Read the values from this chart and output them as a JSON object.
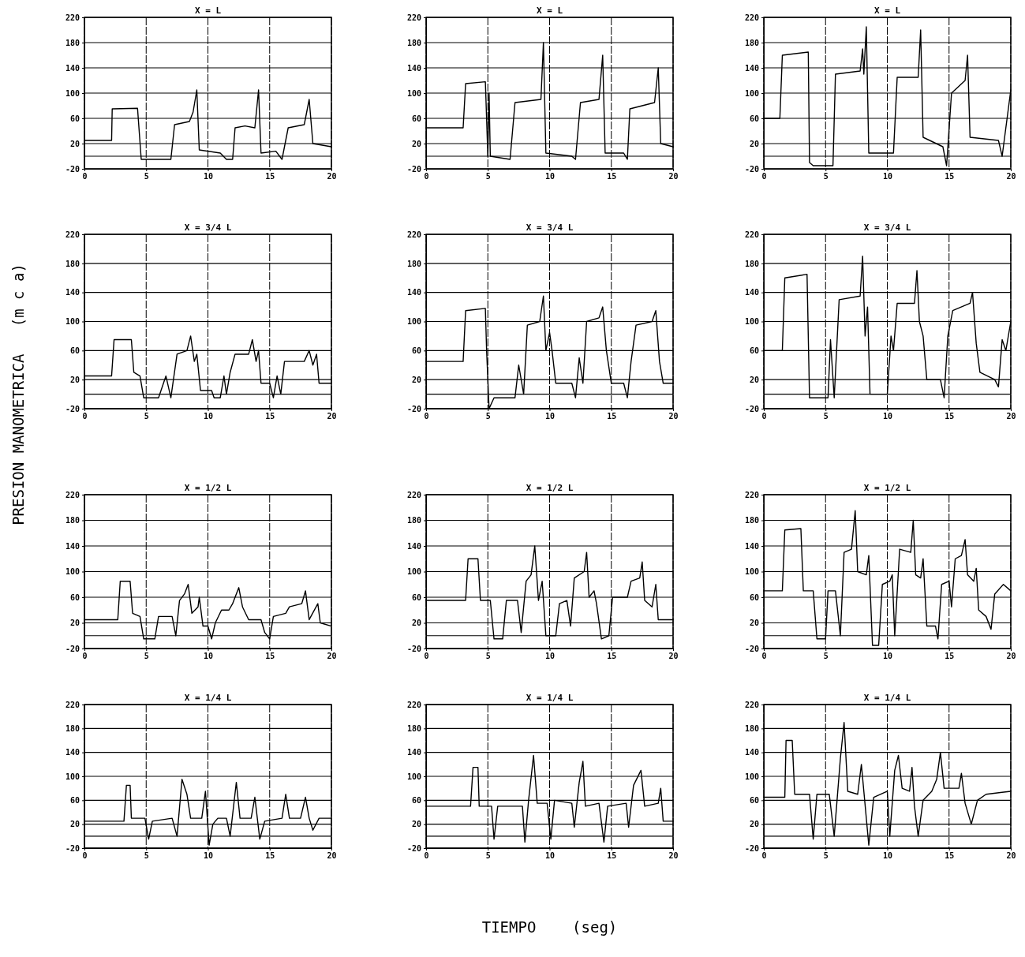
{
  "chart_data": [
    {
      "type": "line",
      "title": "X = L",
      "xlim": [
        0,
        20
      ],
      "xticks": [
        0,
        5,
        10,
        15,
        20
      ],
      "ylim": [
        -20,
        220
      ],
      "yticks": [
        -20,
        20,
        60,
        100,
        140,
        180,
        220
      ],
      "grid": true,
      "ref_lines": [
        {
          "axis": "y",
          "value": 0
        }
      ],
      "series": [
        {
          "color": "#000000",
          "x": [
            0,
            2.2,
            2.25,
            4.3,
            4.6,
            7,
            7.3,
            8.5,
            8.8,
            9.1,
            9.3,
            11,
            11.5,
            12,
            12.2,
            13,
            13.8,
            14.1,
            14.3,
            15.5,
            16,
            16.5,
            17.8,
            18.2,
            18.5,
            20
          ],
          "values": [
            25,
            25,
            75,
            76,
            -5,
            -5,
            50,
            55,
            70,
            105,
            10,
            5,
            -5,
            -5,
            45,
            48,
            45,
            105,
            5,
            8,
            -5,
            45,
            50,
            90,
            20,
            15
          ]
        }
      ]
    },
    {
      "type": "line",
      "title": "X = L",
      "xlim": [
        0,
        20
      ],
      "xticks": [
        0,
        5,
        10,
        15,
        20
      ],
      "ylim": [
        -20,
        220
      ],
      "yticks": [
        -20,
        20,
        60,
        100,
        140,
        180,
        220
      ],
      "grid": true,
      "ref_lines": [
        {
          "axis": "y",
          "value": 0
        }
      ],
      "series": [
        {
          "color": "#000000",
          "x": [
            0,
            3,
            3.2,
            4.8,
            5,
            5.1,
            5.2,
            6.8,
            7.2,
            9.3,
            9.5,
            9.7,
            11.8,
            12.1,
            12.5,
            14,
            14.3,
            14.5,
            16,
            16.3,
            16.5,
            18.5,
            18.8,
            19,
            20
          ],
          "values": [
            45,
            45,
            115,
            118,
            0,
            100,
            0,
            -5,
            85,
            90,
            180,
            5,
            0,
            -5,
            85,
            90,
            160,
            5,
            5,
            -5,
            75,
            85,
            140,
            20,
            15
          ]
        }
      ]
    },
    {
      "type": "line",
      "title": "X = L",
      "xlim": [
        0,
        20
      ],
      "xticks": [
        0,
        5,
        10,
        15,
        20
      ],
      "ylim": [
        -20,
        220
      ],
      "yticks": [
        -20,
        20,
        60,
        100,
        140,
        180,
        220
      ],
      "grid": true,
      "ref_lines": [
        {
          "axis": "y",
          "value": 0
        }
      ],
      "series": [
        {
          "color": "#000000",
          "x": [
            0,
            1.3,
            1.5,
            3.6,
            3.7,
            4,
            4.5,
            5.6,
            5.8,
            7.8,
            8,
            8.1,
            8.3,
            8.5,
            10.5,
            10.8,
            12.5,
            12.7,
            12.9,
            14.5,
            14.8,
            15.2,
            16.3,
            16.5,
            16.7,
            19,
            19.3,
            20
          ],
          "values": [
            60,
            60,
            160,
            165,
            -10,
            -15,
            -15,
            -15,
            130,
            135,
            170,
            130,
            205,
            5,
            5,
            125,
            125,
            200,
            30,
            15,
            -15,
            100,
            120,
            160,
            30,
            25,
            0,
            105
          ]
        }
      ]
    },
    {
      "type": "line",
      "title": "X = 3/4 L",
      "ylabel": "PRESION MANOMETRICA   (m c a)",
      "xlim": [
        0,
        20
      ],
      "xticks": [
        0,
        5,
        10,
        15,
        20
      ],
      "ylim": [
        -20,
        220
      ],
      "yticks": [
        -20,
        20,
        60,
        100,
        140,
        180,
        220
      ],
      "grid": true,
      "ref_lines": [
        {
          "axis": "y",
          "value": 0
        }
      ],
      "series": [
        {
          "color": "#000000",
          "x": [
            0,
            2.2,
            2.4,
            3.8,
            4,
            4.5,
            4.8,
            6,
            6.6,
            7,
            7.5,
            8.3,
            8.6,
            8.9,
            9.1,
            9.4,
            10.3,
            10.5,
            11,
            11.3,
            11.5,
            11.8,
            12.2,
            13.3,
            13.6,
            13.9,
            14.1,
            14.3,
            15,
            15.3,
            15.6,
            15.9,
            16.2,
            17.8,
            18.2,
            18.5,
            18.8,
            19,
            20
          ],
          "values": [
            25,
            25,
            75,
            75,
            30,
            25,
            -5,
            -5,
            25,
            -5,
            55,
            60,
            80,
            45,
            55,
            5,
            5,
            -5,
            -5,
            25,
            0,
            30,
            55,
            55,
            75,
            45,
            60,
            15,
            15,
            -5,
            25,
            0,
            45,
            45,
            60,
            40,
            55,
            15,
            15
          ]
        }
      ]
    },
    {
      "type": "line",
      "title": "X = 3/4 L",
      "xlim": [
        0,
        20
      ],
      "xticks": [
        0,
        5,
        10,
        15,
        20
      ],
      "ylim": [
        -20,
        220
      ],
      "yticks": [
        -20,
        20,
        60,
        100,
        140,
        180,
        220
      ],
      "grid": true,
      "ref_lines": [
        {
          "axis": "y",
          "value": 0
        }
      ],
      "series": [
        {
          "color": "#000000",
          "x": [
            0,
            3,
            3.2,
            4.8,
            4.9,
            5.1,
            5.5,
            7.2,
            7.5,
            7.9,
            8.2,
            9.2,
            9.5,
            9.7,
            10,
            10.2,
            10.5,
            11.8,
            12.1,
            12.4,
            12.7,
            13,
            14,
            14.3,
            14.6,
            15,
            16,
            16.3,
            16.6,
            17,
            18.3,
            18.6,
            18.9,
            19.2,
            20
          ],
          "values": [
            45,
            45,
            115,
            118,
            60,
            -20,
            -5,
            -5,
            40,
            0,
            95,
            100,
            135,
            60,
            85,
            60,
            15,
            15,
            -5,
            50,
            15,
            100,
            105,
            120,
            60,
            15,
            15,
            -5,
            45,
            95,
            100,
            115,
            45,
            15,
            15
          ]
        }
      ]
    },
    {
      "type": "line",
      "title": "X = 3/4 L",
      "xlim": [
        0,
        20
      ],
      "xticks": [
        0,
        5,
        10,
        15,
        20
      ],
      "ylim": [
        -20,
        220
      ],
      "yticks": [
        -20,
        20,
        60,
        100,
        140,
        180,
        220
      ],
      "grid": true,
      "ref_lines": [
        {
          "axis": "y",
          "value": 0
        }
      ],
      "series": [
        {
          "color": "#000000",
          "x": [
            0,
            1.5,
            1.7,
            3.5,
            3.7,
            5.2,
            5.4,
            5.7,
            6.1,
            7.8,
            8,
            8.2,
            8.4,
            8.6,
            10,
            10.3,
            10.5,
            10.8,
            12.2,
            12.4,
            12.6,
            12.9,
            13.2,
            14.3,
            14.6,
            14.9,
            15.3,
            16.7,
            16.9,
            17.2,
            17.5,
            18.7,
            19,
            19.3,
            19.6,
            20
          ],
          "values": [
            60,
            60,
            160,
            165,
            -5,
            -5,
            75,
            -5,
            130,
            135,
            190,
            80,
            120,
            0,
            0,
            80,
            60,
            125,
            125,
            170,
            100,
            80,
            20,
            20,
            -5,
            80,
            115,
            125,
            140,
            70,
            30,
            20,
            10,
            75,
            60,
            100
          ]
        }
      ]
    },
    {
      "type": "line",
      "title": "X = 1/2 L",
      "xlim": [
        0,
        20
      ],
      "xticks": [
        0,
        5,
        10,
        15,
        20
      ],
      "ylim": [
        -20,
        220
      ],
      "yticks": [
        -20,
        20,
        60,
        100,
        140,
        180,
        220
      ],
      "grid": true,
      "ref_lines": [
        {
          "axis": "y",
          "value": 0
        }
      ],
      "series": [
        {
          "color": "#000000",
          "x": [
            0,
            2.7,
            2.9,
            3.7,
            3.9,
            4.5,
            4.8,
            5.7,
            6,
            7.1,
            7.4,
            7.7,
            8.1,
            8.4,
            8.7,
            9.2,
            9.3,
            9.6,
            10,
            10.3,
            10.6,
            11.1,
            11.7,
            12,
            12.5,
            12.8,
            13.3,
            14.3,
            14.6,
            15,
            15.3,
            16.3,
            16.6,
            17.6,
            17.9,
            18.2,
            18.9,
            19.1,
            20
          ],
          "values": [
            25,
            25,
            85,
            85,
            35,
            30,
            -5,
            -5,
            30,
            30,
            0,
            55,
            65,
            80,
            35,
            45,
            60,
            15,
            15,
            -5,
            20,
            40,
            40,
            50,
            75,
            45,
            25,
            25,
            5,
            -5,
            30,
            35,
            45,
            50,
            70,
            25,
            50,
            20,
            15
          ]
        }
      ]
    },
    {
      "type": "line",
      "title": "X = 1/2 L",
      "xlim": [
        0,
        20
      ],
      "xticks": [
        0,
        5,
        10,
        15,
        20
      ],
      "ylim": [
        -20,
        220
      ],
      "yticks": [
        -20,
        20,
        60,
        100,
        140,
        180,
        220
      ],
      "grid": true,
      "ref_lines": [
        {
          "axis": "y",
          "value": 0
        }
      ],
      "series": [
        {
          "color": "#000000",
          "x": [
            0,
            3.2,
            3.4,
            4.2,
            4.4,
            5.2,
            5.5,
            6.2,
            6.5,
            7.4,
            7.7,
            8.1,
            8.5,
            8.8,
            9.1,
            9.4,
            9.7,
            10.5,
            10.8,
            11.4,
            11.7,
            12,
            12.8,
            13,
            13.2,
            13.6,
            13.8,
            14.2,
            14.8,
            15.1,
            16.3,
            16.6,
            17.3,
            17.5,
            17.7,
            18.3,
            18.6,
            18.8,
            20
          ],
          "values": [
            55,
            55,
            120,
            120,
            55,
            55,
            -5,
            -5,
            55,
            55,
            5,
            85,
            95,
            140,
            55,
            85,
            0,
            0,
            50,
            55,
            15,
            90,
            100,
            130,
            60,
            70,
            50,
            -5,
            0,
            60,
            60,
            85,
            90,
            115,
            55,
            45,
            80,
            25,
            25
          ]
        }
      ]
    },
    {
      "type": "line",
      "title": "X = 1/2 L",
      "xlim": [
        0,
        20
      ],
      "xticks": [
        0,
        5,
        10,
        15,
        20
      ],
      "ylim": [
        -20,
        220
      ],
      "yticks": [
        -20,
        20,
        60,
        100,
        140,
        180,
        220
      ],
      "grid": true,
      "ref_lines": [
        {
          "axis": "y",
          "value": 0
        }
      ],
      "series": [
        {
          "color": "#000000",
          "x": [
            0,
            1.5,
            1.7,
            3,
            3.2,
            4,
            4.3,
            5,
            5.2,
            5.8,
            6.2,
            6.5,
            7.1,
            7.4,
            7.6,
            8.3,
            8.5,
            8.8,
            9.3,
            9.6,
            10.2,
            10.4,
            10.6,
            11,
            11.9,
            12.1,
            12.3,
            12.7,
            12.9,
            13.2,
            13.9,
            14.1,
            14.4,
            15,
            15.2,
            15.5,
            16,
            16.3,
            16.5,
            17,
            17.2,
            17.4,
            18,
            18.4,
            18.7,
            19.4,
            20
          ],
          "values": [
            70,
            70,
            165,
            167,
            70,
            70,
            -5,
            -5,
            70,
            70,
            0,
            130,
            135,
            195,
            100,
            95,
            125,
            -15,
            -15,
            80,
            85,
            95,
            0,
            135,
            130,
            180,
            95,
            90,
            120,
            15,
            15,
            -5,
            80,
            85,
            45,
            120,
            125,
            150,
            95,
            85,
            105,
            40,
            30,
            10,
            65,
            80,
            70
          ]
        }
      ]
    },
    {
      "type": "line",
      "title": "X = 1/4 L",
      "xlim": [
        0,
        20
      ],
      "xticks": [
        0,
        5,
        10,
        15,
        20
      ],
      "ylim": [
        -20,
        220
      ],
      "yticks": [
        -20,
        20,
        60,
        100,
        140,
        180,
        220
      ],
      "grid": true,
      "ref_lines": [
        {
          "axis": "y",
          "value": 0
        }
      ],
      "series": [
        {
          "color": "#000000",
          "x": [
            0,
            3.2,
            3.4,
            3.7,
            3.8,
            4.9,
            5.2,
            5.5,
            7.1,
            7.5,
            7.9,
            8.3,
            8.6,
            9.5,
            9.8,
            10.1,
            10.4,
            10.8,
            11.5,
            11.8,
            12.3,
            12.6,
            13.5,
            13.8,
            14.2,
            14.6,
            16,
            16.3,
            16.6,
            17.5,
            17.9,
            18.2,
            18.5,
            19,
            20
          ],
          "values": [
            25,
            25,
            85,
            85,
            30,
            30,
            -5,
            25,
            30,
            0,
            95,
            70,
            30,
            30,
            75,
            -15,
            20,
            30,
            30,
            0,
            90,
            30,
            30,
            65,
            -5,
            25,
            30,
            70,
            30,
            30,
            65,
            30,
            10,
            30,
            30
          ]
        }
      ]
    },
    {
      "type": "line",
      "title": "X = 1/4 L",
      "xlabel": "TIEMPO    (seg)",
      "xlim": [
        0,
        20
      ],
      "xticks": [
        0,
        5,
        10,
        15,
        20
      ],
      "ylim": [
        -20,
        220
      ],
      "yticks": [
        -20,
        20,
        60,
        100,
        140,
        180,
        220
      ],
      "grid": true,
      "ref_lines": [
        {
          "axis": "y",
          "value": 0
        }
      ],
      "series": [
        {
          "color": "#000000",
          "x": [
            0,
            3.6,
            3.8,
            4.2,
            4.3,
            5.3,
            5.5,
            5.8,
            7.8,
            8,
            8.3,
            8.7,
            9,
            9.8,
            10.1,
            10.4,
            11.8,
            12,
            12.4,
            12.7,
            12.9,
            14,
            14.4,
            14.7,
            16.2,
            16.4,
            16.8,
            17.4,
            17.7,
            18.8,
            19,
            19.2,
            20
          ],
          "values": [
            50,
            50,
            115,
            115,
            50,
            50,
            -5,
            50,
            50,
            -10,
            60,
            135,
            55,
            55,
            -5,
            60,
            55,
            15,
            90,
            125,
            50,
            55,
            -10,
            50,
            55,
            15,
            85,
            110,
            50,
            55,
            80,
            25,
            25
          ]
        }
      ]
    },
    {
      "type": "line",
      "title": "X = 1/4 L",
      "xlim": [
        0,
        20
      ],
      "xticks": [
        0,
        5,
        10,
        15,
        20
      ],
      "ylim": [
        -20,
        220
      ],
      "yticks": [
        -20,
        20,
        60,
        100,
        140,
        180,
        220
      ],
      "grid": true,
      "ref_lines": [
        {
          "axis": "y",
          "value": 0
        }
      ],
      "series": [
        {
          "color": "#000000",
          "x": [
            0,
            1.7,
            1.8,
            2.3,
            2.5,
            3.7,
            4,
            4.3,
            5.3,
            5.7,
            6.2,
            6.5,
            6.8,
            7.6,
            7.9,
            8.1,
            8.5,
            8.9,
            10,
            10.2,
            10.6,
            10.9,
            11.2,
            11.8,
            12,
            12.2,
            12.5,
            12.9,
            13.6,
            14,
            14.3,
            14.6,
            15.8,
            16,
            16.3,
            16.8,
            17.3,
            18,
            20
          ],
          "values": [
            65,
            65,
            160,
            160,
            70,
            70,
            -5,
            70,
            70,
            0,
            130,
            190,
            75,
            70,
            120,
            75,
            -15,
            65,
            75,
            0,
            110,
            135,
            80,
            75,
            115,
            50,
            0,
            60,
            75,
            95,
            140,
            80,
            80,
            105,
            55,
            20,
            60,
            70,
            75
          ]
        }
      ]
    }
  ]
}
